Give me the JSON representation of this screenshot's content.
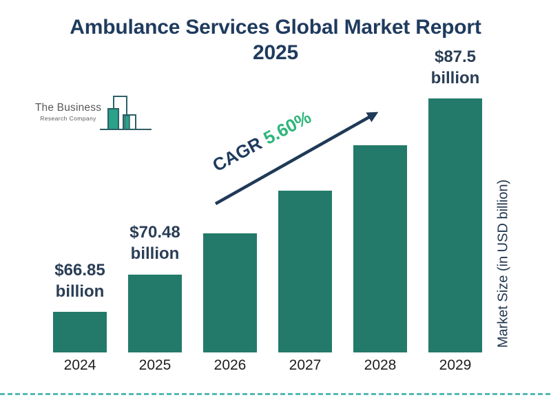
{
  "header": {
    "title": "Ambulance Services Global Market Report 2025"
  },
  "logo": {
    "name_line1": "The Business",
    "name_line2": "Research Company"
  },
  "annotation": {
    "cagr_label": "CAGR",
    "cagr_value": "5.60%"
  },
  "axis": {
    "y_label": "Market Size (in USD billion)"
  },
  "colors": {
    "bar": "#237a6a",
    "navy": "#1f3b5e",
    "green": "#2eb57c",
    "dash_line": "#54b8b4",
    "logo_outline": "#2e5f66",
    "logo_fill": "#2aa189",
    "logo_text": "#58595b",
    "year_text": "#1d1d1d"
  },
  "chart_data": {
    "type": "bar",
    "title": "Ambulance Services Global Market Report 2025",
    "categories": [
      "2024",
      "2025",
      "2026",
      "2027",
      "2028",
      "2029"
    ],
    "values": [
      66.85,
      70.48,
      74.43,
      78.6,
      83.0,
      87.5
    ],
    "bar_labels": [
      [
        "$66.85",
        "billion"
      ],
      [
        "$70.48",
        "billion"
      ],
      null,
      null,
      null,
      [
        "$87.5",
        "billion"
      ]
    ],
    "xlabel": "",
    "ylabel": "Market Size (in USD billion)",
    "cagr": "5.60%",
    "grid": false,
    "legend": "none",
    "value_prefix": "$",
    "value_suffix": " billion"
  }
}
